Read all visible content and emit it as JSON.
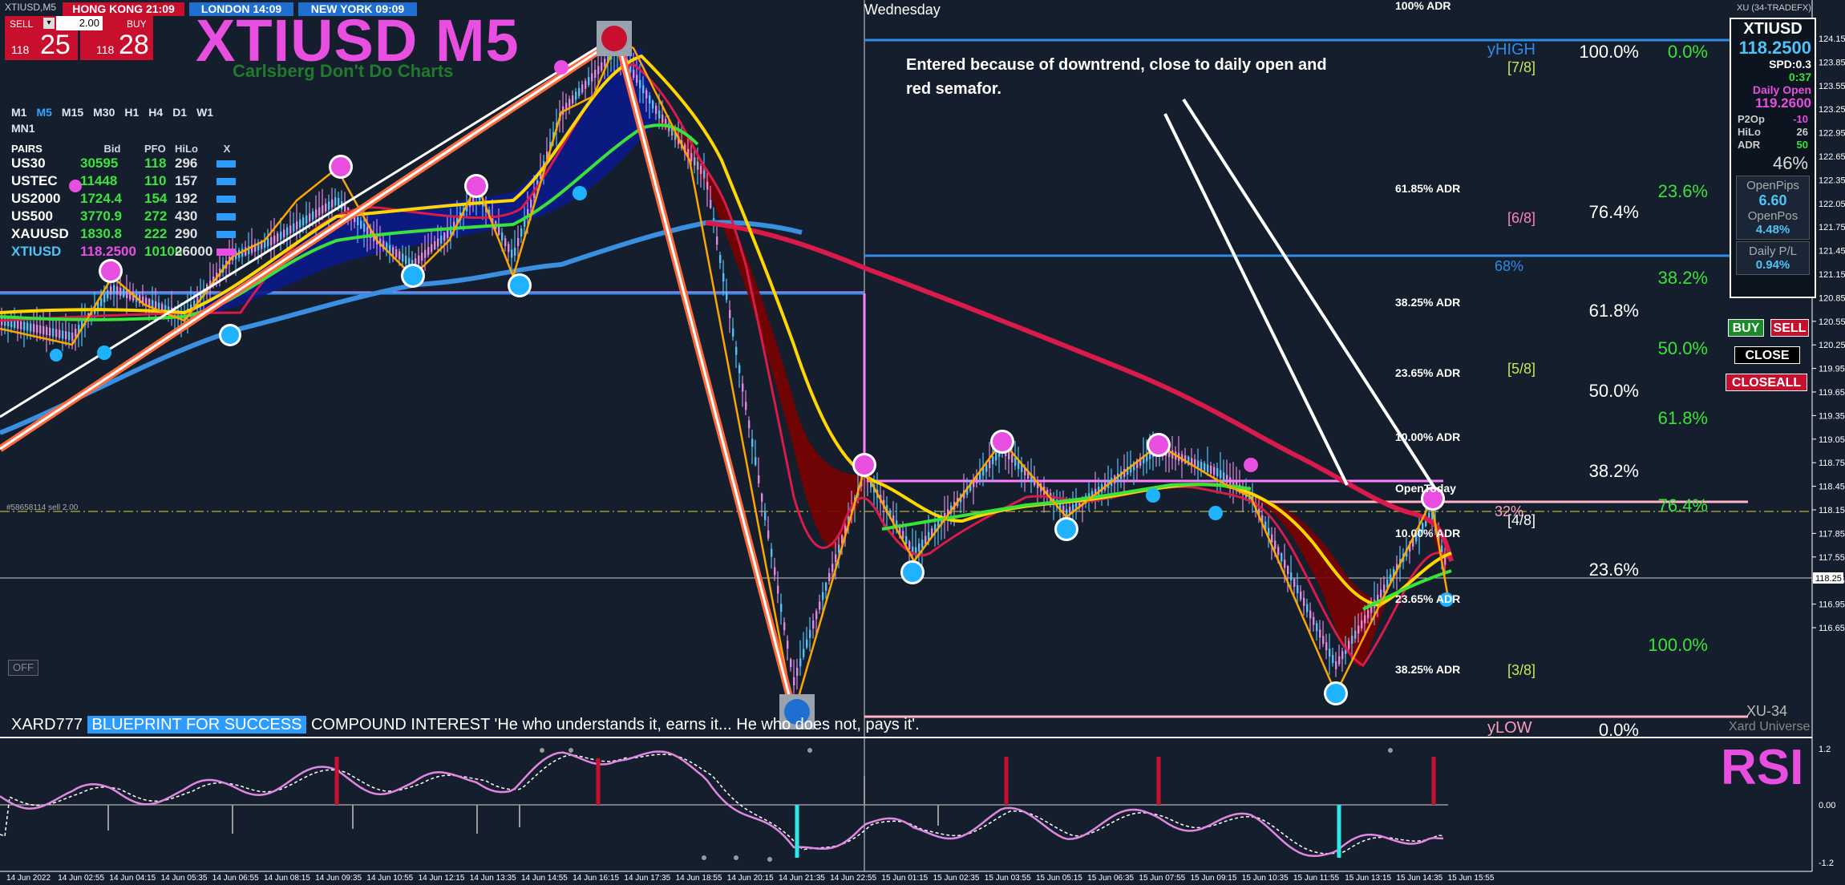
{
  "window": {
    "symbol_tag": "XTIUSD,M5",
    "broker_tag": "XU (34-TRADEFX)"
  },
  "sessions": [
    {
      "label": "HONG KONG 21:09",
      "color": "#c8102e"
    },
    {
      "label": "LONDON 14:09",
      "color": "#1f6fd1"
    },
    {
      "label": "NEW YORK 09:09",
      "color": "#1f6fd1"
    }
  ],
  "trade_panel": {
    "sell_label": "SELL",
    "buy_label": "BUY",
    "lot": "2.00",
    "sell_small": "118",
    "sell_big": "25",
    "buy_small": "118",
    "buy_big": "28"
  },
  "title": "XTIUSD M5",
  "subtitle": "Carlsberg Don't Do Charts",
  "pairs_table": {
    "timeframes": [
      "M1",
      "M5",
      "M15",
      "M30",
      "H1",
      "H4",
      "D1",
      "W1",
      "MN1"
    ],
    "active_tf": "M5",
    "headers": [
      "PAIRS",
      "Bid",
      "PFO",
      "HiLo",
      "X"
    ],
    "rows": [
      {
        "pair": "US30",
        "bid": "30595",
        "pfo": "118",
        "hilo": "296"
      },
      {
        "pair": "USTEC",
        "bid": "11448",
        "pfo": "110",
        "hilo": "157"
      },
      {
        "pair": "US2000",
        "bid": "1724.4",
        "pfo": "154",
        "hilo": "192"
      },
      {
        "pair": "US500",
        "bid": "3770.9",
        "pfo": "272",
        "hilo": "430"
      },
      {
        "pair": "XAUUSD",
        "bid": "1830.8",
        "pfo": "222",
        "hilo": "290"
      },
      {
        "pair": "XTIUSD",
        "bid": "118.2500",
        "pfo": "10100",
        "hilo": "26000"
      }
    ]
  },
  "right_panel": {
    "symbol": "XTIUSD",
    "price": "118.2500",
    "spread": "SPD:0.3",
    "timer": "0:37",
    "daily_open_label": "Daily Open",
    "daily_open": "119.2600",
    "kv": [
      {
        "k": "P2Op",
        "v": "-10"
      },
      {
        "k": "HiLo",
        "v": "26"
      },
      {
        "k": "ADR",
        "v": "50"
      }
    ],
    "pct": "46%",
    "open_pips_label": "OpenPips",
    "open_pips": "6.60",
    "open_pos_label": "OpenPos",
    "open_pos": "4.48%",
    "daily_pl_label": "Daily P/L",
    "daily_pl": "0.94%"
  },
  "buttons": {
    "buy": "BUY",
    "sell": "SELL",
    "close": "CLOSE",
    "closeall": "CLOSEALL"
  },
  "note": "Entered because of downtrend, close to daily open and red semafor.",
  "day_label": "Wednesday",
  "ticker": {
    "prefix": "XARD777",
    "highlight": "BLUEPRINT FOR SUCCESS",
    "text": "COMPOUND INTEREST  'He who understands it, earns it... He who does not, pays it'."
  },
  "off_label": "OFF",
  "rsi_label": "RSI",
  "brand": {
    "code": "XU-34",
    "name": "Xard Universe"
  },
  "adr_levels": [
    "100% ADR",
    "61.85% ADR",
    "38.25% ADR",
    "23.65% ADR",
    "10.00% ADR",
    "10.00% ADR",
    "23.65% ADR",
    "38.25% ADR"
  ],
  "murrey": [
    "[7/8]",
    "[6/8]",
    "[5/8]",
    "[4/8]",
    "[3/8]"
  ],
  "fib_white": [
    "100.0%",
    "76.4%",
    "61.8%",
    "50.0%",
    "38.2%",
    "23.6%",
    "0.0%"
  ],
  "fib_green": [
    "0.0%",
    "23.6%",
    "38.2%",
    "50.0%",
    "61.8%",
    "76.4%",
    "100.0%"
  ],
  "misc_labels": {
    "yhigh": "yHIGH",
    "ylow": "yLOW",
    "pct68": "68%",
    "pct32": "32%",
    "open_today": "OpenToday",
    "level_tag": "#58658114 sell 2.00"
  },
  "price_axis": [
    "124.15",
    "123.85",
    "123.55",
    "123.25",
    "122.95",
    "122.65",
    "122.35",
    "122.05",
    "121.75",
    "121.45",
    "121.15",
    "120.85",
    "120.55",
    "120.25",
    "119.95",
    "119.65",
    "119.35",
    "119.05",
    "118.75",
    "118.45",
    "118.15",
    "117.85",
    "117.55",
    "117.25",
    "116.95",
    "116.65"
  ],
  "price_marker": "118.25",
  "rsi_axis": [
    "1.2",
    "0.00",
    "-1.2"
  ],
  "time_axis": [
    "14 Jun 2022",
    "14 Jun 02:55",
    "14 Jun 04:15",
    "14 Jun 05:35",
    "14 Jun 06:55",
    "14 Jun 08:15",
    "14 Jun 09:35",
    "14 Jun 10:55",
    "14 Jun 12:15",
    "14 Jun 13:35",
    "14 Jun 14:55",
    "14 Jun 16:15",
    "14 Jun 17:35",
    "14 Jun 18:55",
    "14 Jun 20:15",
    "14 Jun 21:35",
    "14 Jun 22:55",
    "15 Jun 01:15",
    "15 Jun 02:35",
    "15 Jun 03:55",
    "15 Jun 05:15",
    "15 Jun 06:35",
    "15 Jun 07:55",
    "15 Jun 09:15",
    "15 Jun 10:35",
    "15 Jun 11:55",
    "15 Jun 13:15",
    "15 Jun 14:35",
    "15 Jun 15:55"
  ],
  "colors": {
    "background": "#141e2c",
    "yellow_ma": "#ffd700",
    "green_ma": "#39e339",
    "blue_ma": "#3a8fe0",
    "red_ma": "#d81b4a",
    "fill_down": "#7a0000",
    "fill_up": "#0a1a8a",
    "zigzag": "#ffa500",
    "pink_level": "#ff80ff",
    "fib_white": "#ffffff",
    "fib_green": "#39e339"
  }
}
